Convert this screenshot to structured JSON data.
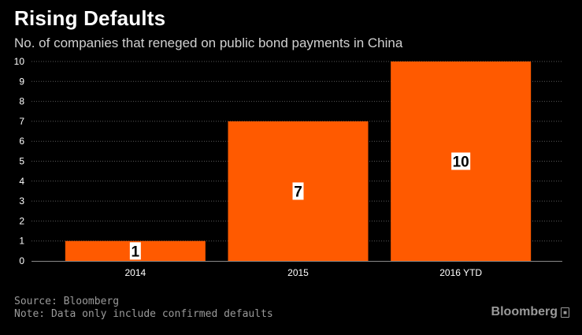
{
  "title": "Rising Defaults",
  "subtitle": "No. of companies that reneged on public bond payments in China",
  "source": "Source: Bloomberg",
  "note": "Note: Data only include confirmed defaults",
  "brand": "Bloomberg",
  "colors": {
    "bar": "#ff5a00",
    "background": "#000000",
    "grid": "#5a5a5a"
  },
  "chart_data": {
    "type": "bar",
    "categories": [
      "2014",
      "2015",
      "2016 YTD"
    ],
    "values": [
      1,
      7,
      10
    ],
    "data_labels": [
      "1",
      "7",
      "10"
    ],
    "title": "Rising Defaults",
    "subtitle": "No. of companies that reneged on public bond payments in China",
    "xlabel": "",
    "ylabel": "",
    "ylim": [
      0,
      10
    ],
    "yticks": [
      0,
      1,
      2,
      3,
      4,
      5,
      6,
      7,
      8,
      9,
      10
    ],
    "grid": true
  }
}
